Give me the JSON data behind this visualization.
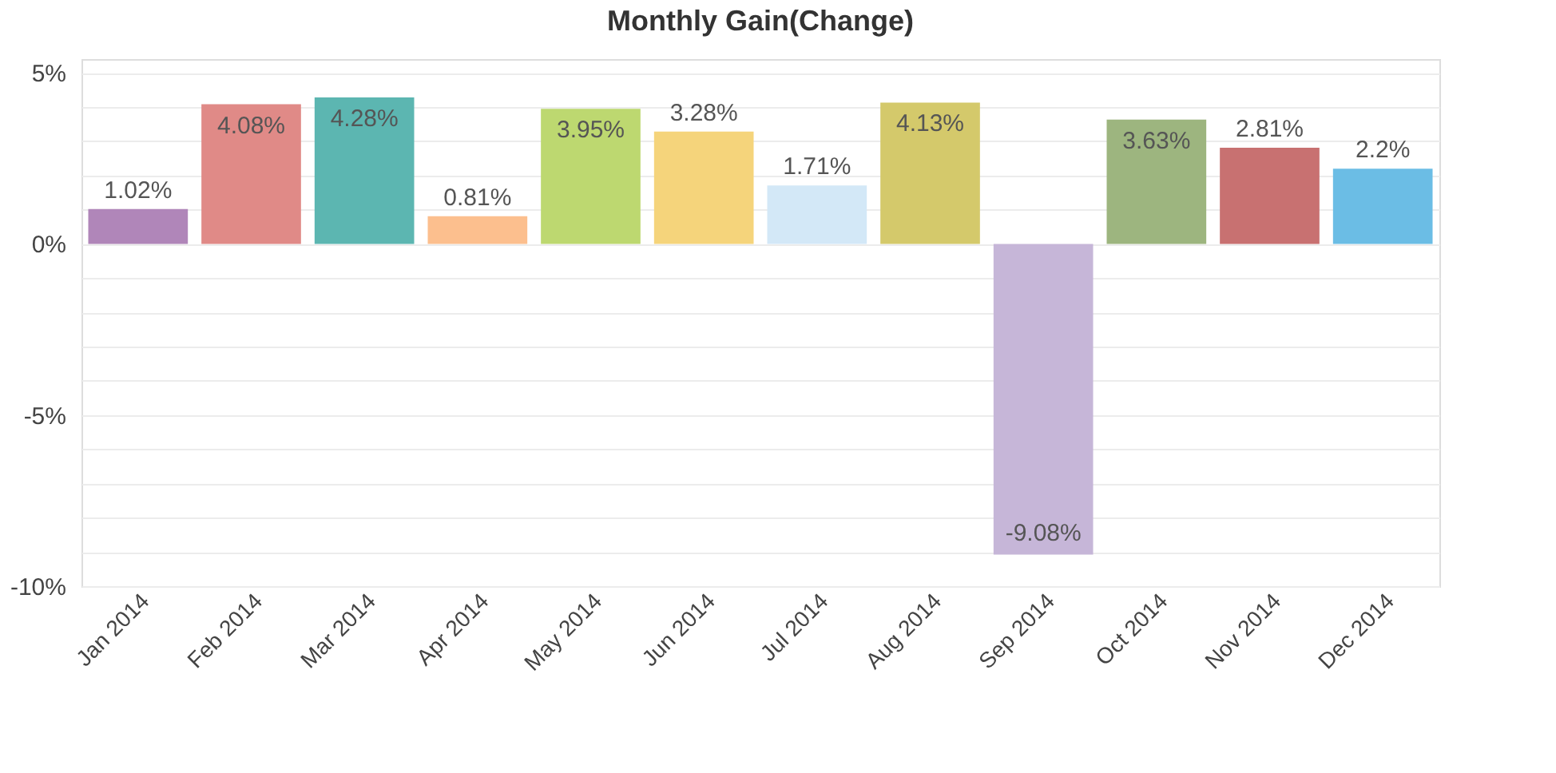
{
  "chart_data": {
    "type": "bar",
    "title": "Monthly Gain(Change)",
    "categories": [
      "Jan 2014",
      "Feb 2014",
      "Mar 2014",
      "Apr 2014",
      "May 2014",
      "Jun 2014",
      "Jul 2014",
      "Aug 2014",
      "Sep 2014",
      "Oct 2014",
      "Nov 2014",
      "Dec 2014"
    ],
    "values": [
      1.02,
      4.08,
      4.28,
      0.81,
      3.95,
      3.28,
      1.71,
      4.13,
      -9.08,
      3.63,
      2.81,
      2.2
    ],
    "value_labels": [
      "1.02%",
      "4.08%",
      "4.28%",
      "0.81%",
      "3.95%",
      "3.28%",
      "1.71%",
      "4.13%",
      "-9.08%",
      "3.63%",
      "2.81%",
      "2.2%"
    ],
    "colors": [
      "#b086b9",
      "#e08a87",
      "#5cb6b1",
      "#fcbf8e",
      "#bdd870",
      "#f5d47b",
      "#d3e8f7",
      "#d4c96b",
      "#c6b6d8",
      "#9db57f",
      "#c87171",
      "#6bbde5"
    ],
    "ylim": [
      -10,
      5.4
    ],
    "yticks": [
      {
        "value": -10,
        "label": "-10%"
      },
      {
        "value": -9,
        "label": null
      },
      {
        "value": -8,
        "label": null
      },
      {
        "value": -7,
        "label": null
      },
      {
        "value": -6,
        "label": null
      },
      {
        "value": -5,
        "label": "-5%"
      },
      {
        "value": -4,
        "label": null
      },
      {
        "value": -3,
        "label": null
      },
      {
        "value": -2,
        "label": null
      },
      {
        "value": -1,
        "label": null
      },
      {
        "value": 0,
        "label": "0%"
      },
      {
        "value": 1,
        "label": null
      },
      {
        "value": 2,
        "label": null
      },
      {
        "value": 3,
        "label": null
      },
      {
        "value": 4,
        "label": null
      },
      {
        "value": 5,
        "label": "5%"
      }
    ],
    "grid": "y"
  }
}
